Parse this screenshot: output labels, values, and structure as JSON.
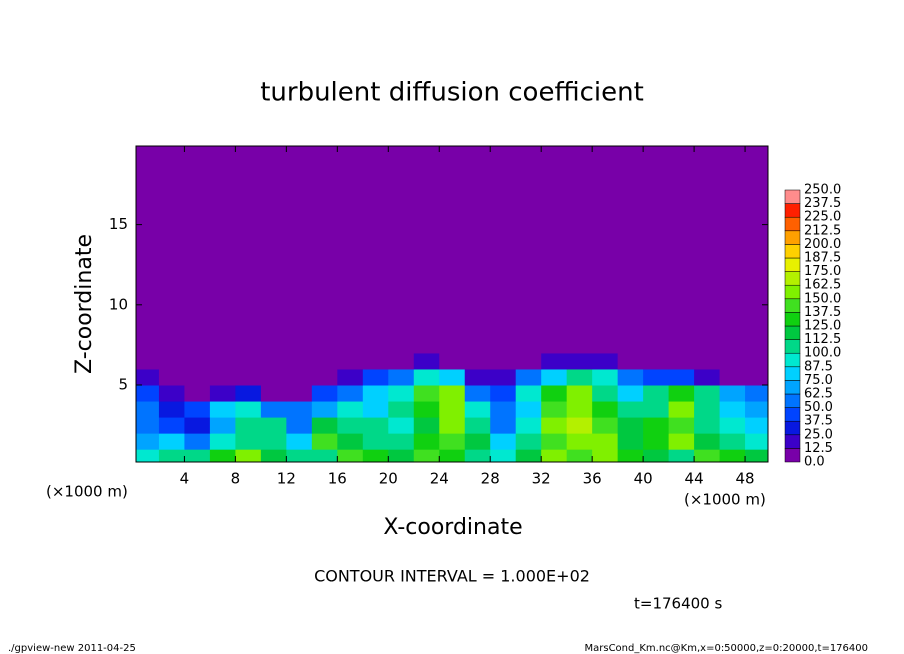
{
  "chart_data": {
    "type": "contour",
    "title": "turbulent diffusion coefficient",
    "x_label": "X-coordinate",
    "y_label": "Z-coordinate",
    "x_unit_labels": [
      "(×1000 m)",
      "(×1000 m)"
    ],
    "contour_note": "CONTOUR INTERVAL = 1.000E+02",
    "time_label": "t=176400 s",
    "footer_left": "./gpview-new  2011-04-25",
    "footer_right": "MarsCond_Km.nc@Km,x=0:50000,z=0:20000,t=176400",
    "xlim": [
      0.2,
      49.8
    ],
    "ylim": [
      0.2,
      19.9
    ],
    "xticks": [
      4,
      8,
      12,
      16,
      20,
      24,
      28,
      32,
      36,
      40,
      44,
      48
    ],
    "yticks": [
      5,
      10,
      15
    ],
    "x_edges": [
      0,
      2,
      4,
      6,
      8,
      10,
      12,
      14,
      16,
      18,
      20,
      22,
      24,
      26,
      28,
      30,
      32,
      34,
      36,
      38,
      40,
      42,
      44,
      46,
      48,
      50
    ],
    "z_edges": [
      0,
      1,
      2,
      3,
      4,
      5,
      6,
      7,
      20
    ],
    "values": [
      [
        90,
        110,
        100,
        130,
        150,
        120,
        100,
        110,
        140,
        130,
        120,
        140,
        130,
        110,
        90,
        120,
        150,
        140,
        160,
        130,
        120,
        110,
        140,
        130,
        120
      ],
      [
        70,
        80,
        60,
        90,
        110,
        100,
        80,
        140,
        120,
        110,
        100,
        130,
        140,
        120,
        80,
        100,
        140,
        160,
        150,
        120,
        130,
        150,
        120,
        100,
        90
      ],
      [
        60,
        40,
        30,
        70,
        100,
        110,
        60,
        120,
        110,
        100,
        90,
        120,
        150,
        110,
        60,
        90,
        150,
        170,
        140,
        120,
        130,
        140,
        110,
        90,
        80
      ],
      [
        50,
        30,
        40,
        80,
        90,
        60,
        50,
        70,
        90,
        80,
        100,
        130,
        160,
        90,
        50,
        80,
        140,
        160,
        130,
        110,
        100,
        150,
        110,
        80,
        70
      ],
      [
        40,
        20,
        10,
        20,
        30,
        10,
        10,
        40,
        60,
        80,
        90,
        140,
        150,
        60,
        40,
        90,
        130,
        150,
        110,
        80,
        100,
        130,
        100,
        70,
        50
      ],
      [
        20,
        10,
        0,
        0,
        0,
        0,
        0,
        10,
        20,
        40,
        50,
        90,
        80,
        20,
        20,
        50,
        80,
        100,
        90,
        60,
        40,
        40,
        20,
        10,
        10
      ],
      [
        0,
        0,
        0,
        0,
        0,
        0,
        0,
        0,
        0,
        10,
        10,
        20,
        10,
        0,
        0,
        10,
        20,
        20,
        20,
        10,
        0,
        0,
        0,
        0,
        0
      ],
      [
        0,
        0,
        0,
        0,
        0,
        0,
        0,
        0,
        0,
        0,
        0,
        0,
        0,
        0,
        0,
        0,
        0,
        0,
        0,
        0,
        0,
        0,
        0,
        0,
        0
      ]
    ],
    "levels": [
      {
        "value": 0,
        "label": "0.0"
      },
      12.5,
      {
        "value": 25,
        "label": "25.0"
      },
      37.5,
      {
        "value": 50,
        "label": "50.0"
      },
      62.5,
      {
        "value": 75,
        "label": "75.0"
      },
      87.5,
      {
        "value": 100,
        "label": "100.0"
      },
      112.5,
      {
        "value": 125,
        "label": "125.0"
      },
      137.5,
      {
        "value": 150,
        "label": "150.0"
      },
      162.5,
      {
        "value": 175,
        "label": "175.0"
      },
      187.5,
      {
        "value": 200,
        "label": "200.0"
      },
      212.5,
      {
        "value": 225,
        "label": "225.0"
      },
      237.5,
      {
        "value": 250,
        "label": "250.0"
      }
    ],
    "colors": [
      "#7800a8",
      "#3c00c8",
      "#0818e0",
      "#0044ff",
      "#0074ff",
      "#00a4ff",
      "#00d0ff",
      "#00e8d0",
      "#00d888",
      "#00c840",
      "#10d010",
      "#40e020",
      "#80f000",
      "#b4f000",
      "#e8f000",
      "#ffd000",
      "#ffa000",
      "#ff6000",
      "#ff2000",
      "#ff8c8c"
    ]
  }
}
